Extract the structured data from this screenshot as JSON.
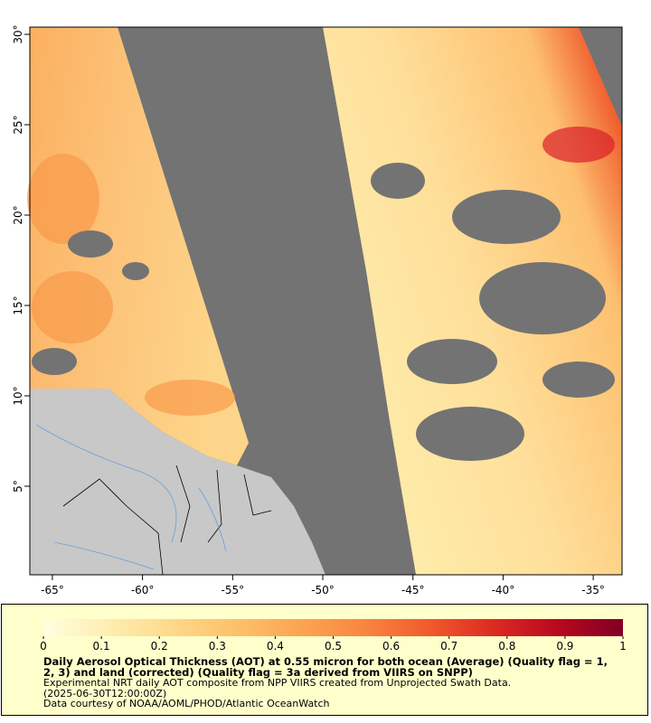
{
  "map": {
    "xlim": [
      -66.25,
      -33.4
    ],
    "ylim": [
      0.1,
      30.4
    ],
    "xticks": [
      {
        "value": -65,
        "label": "-65°"
      },
      {
        "value": -60,
        "label": "-60°"
      },
      {
        "value": -55,
        "label": "-55°"
      },
      {
        "value": -50,
        "label": "-50°"
      },
      {
        "value": -45,
        "label": "-45°"
      },
      {
        "value": -40,
        "label": "-40°"
      },
      {
        "value": -35,
        "label": "-35°"
      }
    ],
    "yticks": [
      {
        "value": 5,
        "label": "5°"
      },
      {
        "value": 10,
        "label": "10°"
      },
      {
        "value": 15,
        "label": "15°"
      },
      {
        "value": 20,
        "label": "20°"
      },
      {
        "value": 25,
        "label": "25°"
      },
      {
        "value": 30,
        "label": "30°"
      }
    ],
    "colorbar": {
      "lim": [
        0,
        1
      ],
      "ticks": [
        0,
        0.1,
        0.2,
        0.3,
        0.4,
        0.5,
        0.6,
        0.7,
        0.8,
        0.9,
        1
      ],
      "colors": [
        "#fffee0",
        "#feeeb0",
        "#fed98a",
        "#fdc06a",
        "#fca452",
        "#f9853f",
        "#f05a2c",
        "#dc2a22",
        "#b8081f",
        "#800026"
      ]
    }
  },
  "legend": {
    "title": "Daily Aerosol Optical Thickness (AOT) at 0.55 micron for both ocean (Average) (Quality flag = 1, 2, 3) and land (corrected) (Quality flag = 3a derived from VIIRS on SNPP)",
    "lines": [
      "Experimental NRT daily AOT composite from NPP VIIRS created from Unprojected Swath Data.",
      "(2025-06-30T12:00:00Z)",
      "Data courtesy of NOAA/AOML/PHOD/Atlantic OceanWatch"
    ]
  }
}
